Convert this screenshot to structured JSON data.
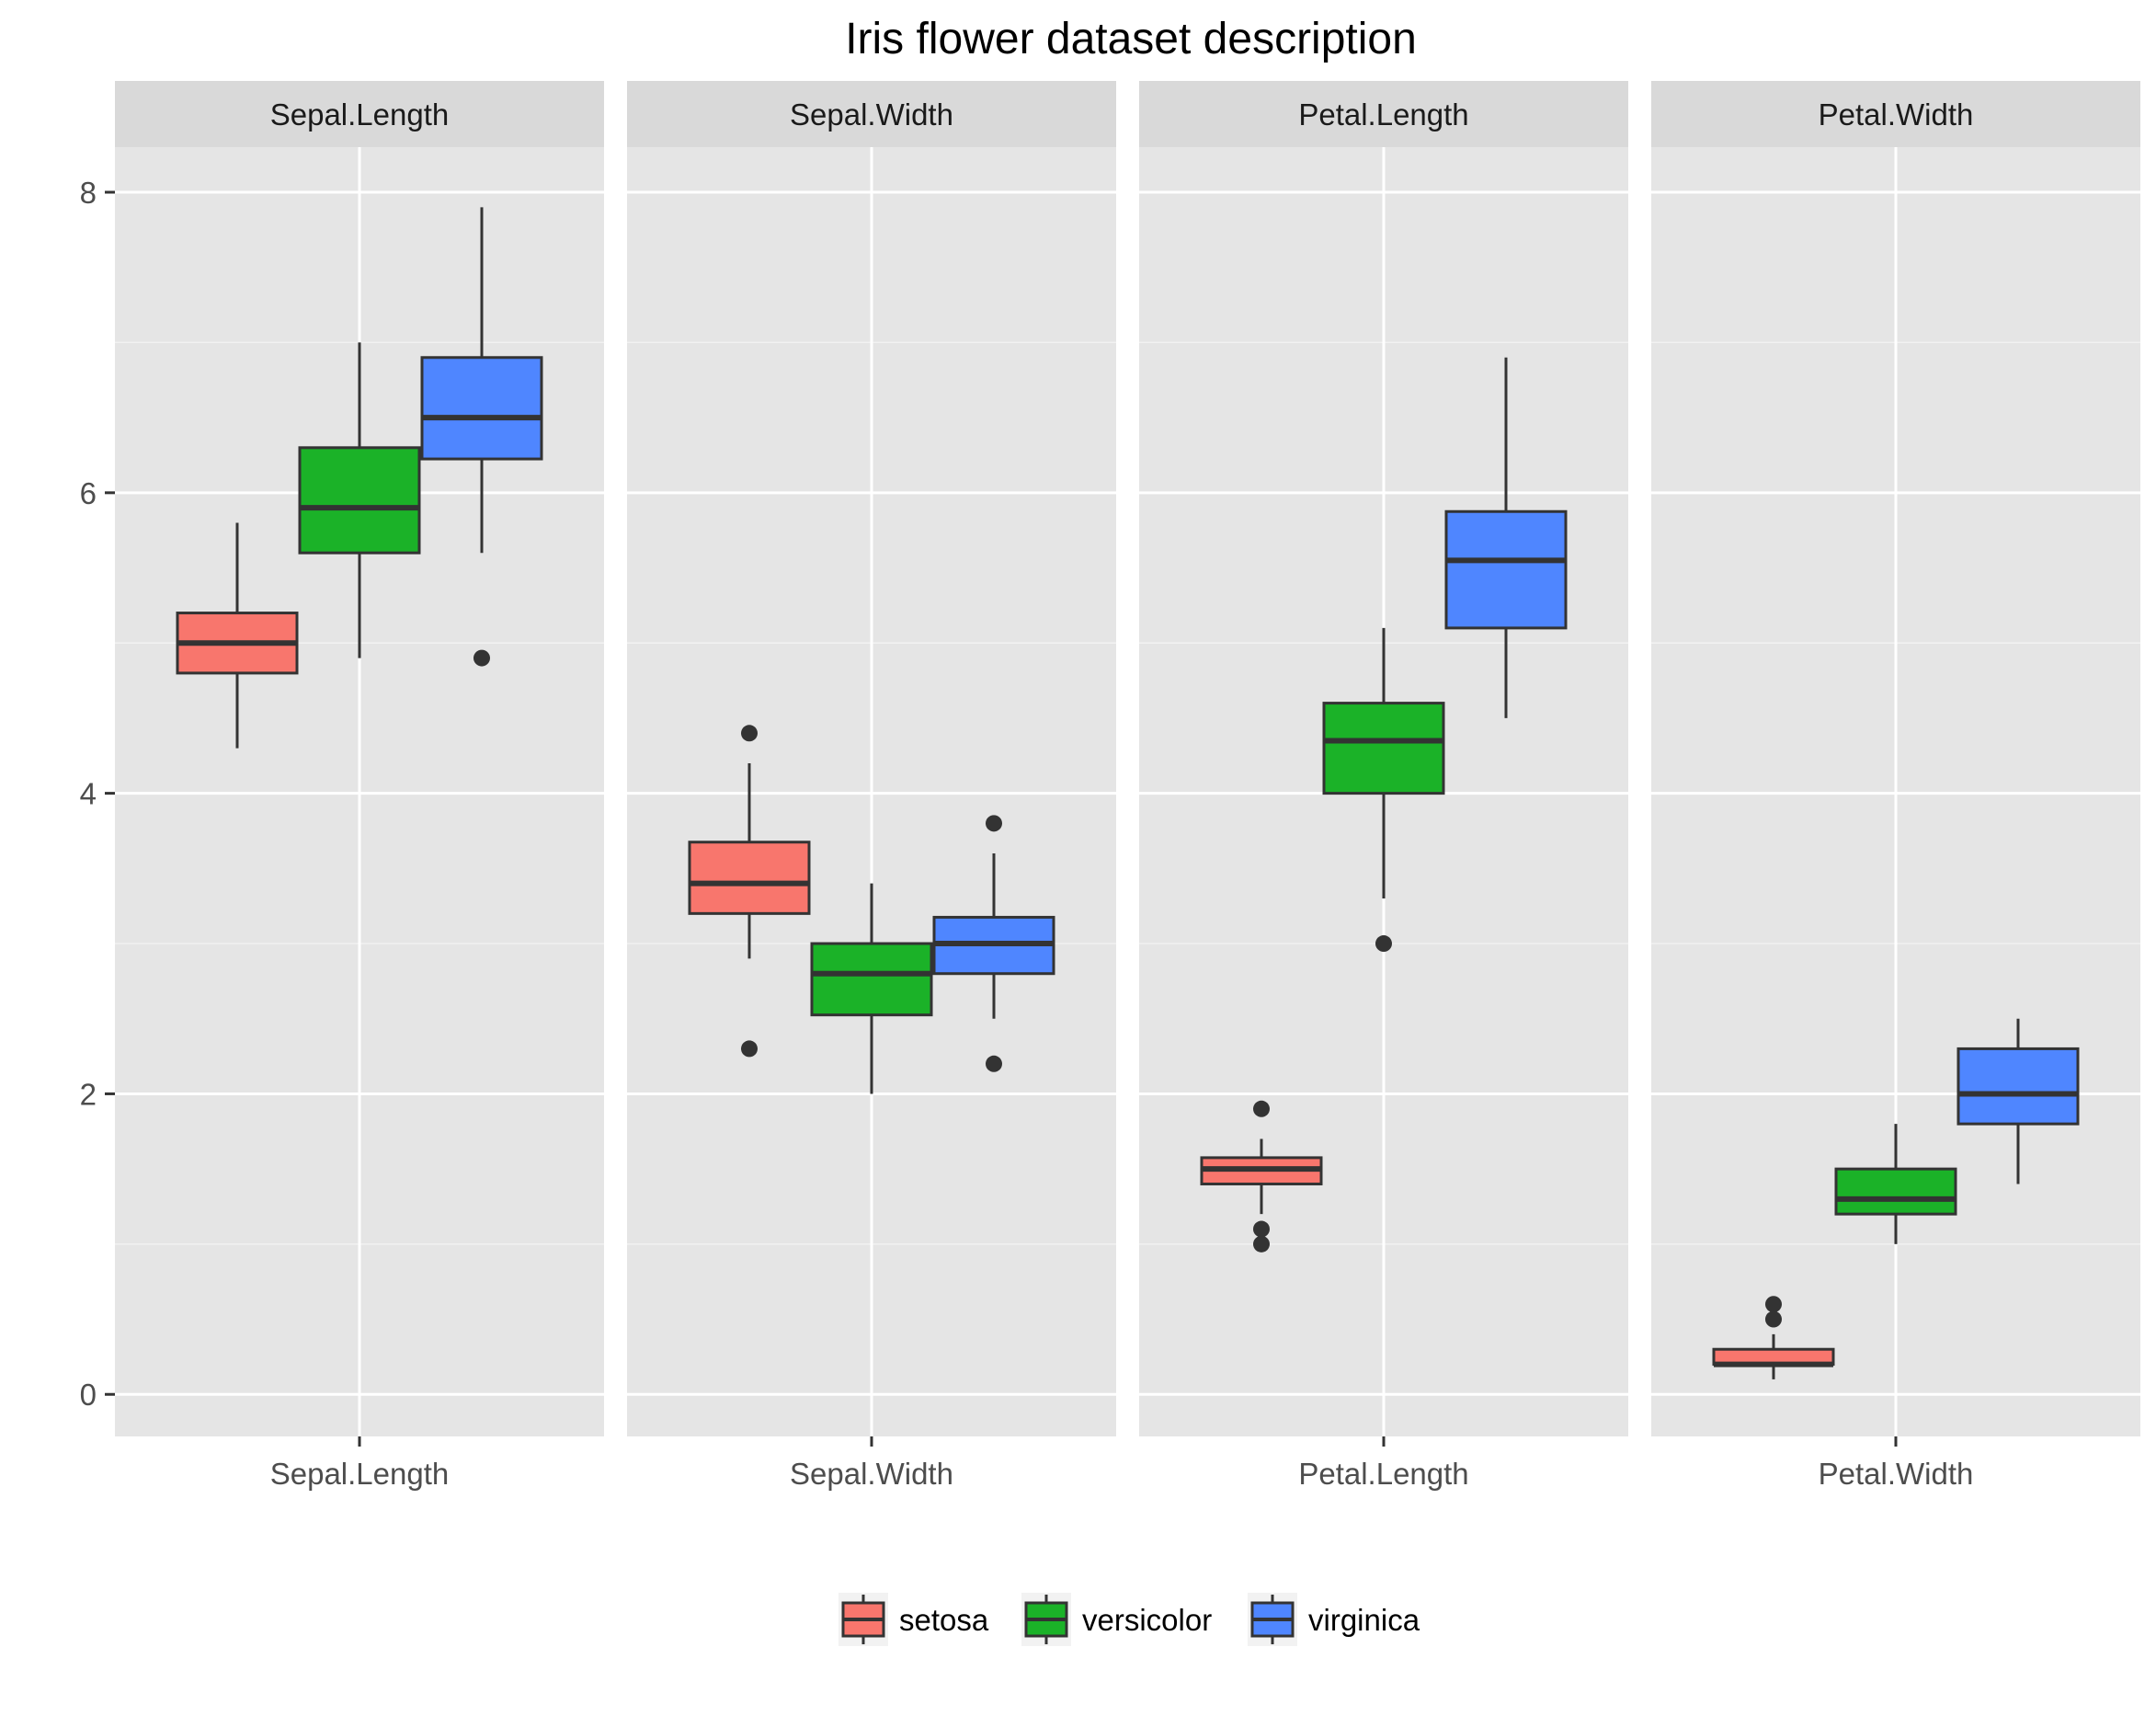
{
  "chart_data": {
    "type": "boxplot",
    "title": "Iris flower dataset description",
    "xlabel": "",
    "ylabel": "",
    "ylim": [
      -0.28,
      8.3
    ],
    "yticks": [
      0,
      2,
      4,
      6,
      8
    ],
    "grid": true,
    "legend_position": "bottom",
    "facets": [
      "Sepal.Length",
      "Sepal.Width",
      "Petal.Length",
      "Petal.Width"
    ],
    "series": [
      {
        "name": "setosa",
        "color": "#F8766D",
        "boxes": [
          {
            "facet": "Sepal.Length",
            "whisker_low": 4.3,
            "q1": 4.8,
            "median": 5.0,
            "q3": 5.2,
            "whisker_high": 5.8,
            "outliers": []
          },
          {
            "facet": "Sepal.Width",
            "whisker_low": 2.9,
            "q1": 3.2,
            "median": 3.4,
            "q3": 3.675,
            "whisker_high": 4.2,
            "outliers": [
              4.4,
              2.3
            ]
          },
          {
            "facet": "Petal.Length",
            "whisker_low": 1.2,
            "q1": 1.4,
            "median": 1.5,
            "q3": 1.575,
            "whisker_high": 1.7,
            "outliers": [
              1.9,
              1.1,
              1.0
            ]
          },
          {
            "facet": "Petal.Width",
            "whisker_low": 0.1,
            "q1": 0.2,
            "median": 0.2,
            "q3": 0.3,
            "whisker_high": 0.4,
            "outliers": [
              0.6,
              0.5
            ]
          }
        ]
      },
      {
        "name": "versicolor",
        "color": "#1BB228",
        "boxes": [
          {
            "facet": "Sepal.Length",
            "whisker_low": 4.9,
            "q1": 5.6,
            "median": 5.9,
            "q3": 6.3,
            "whisker_high": 7.0,
            "outliers": []
          },
          {
            "facet": "Sepal.Width",
            "whisker_low": 2.0,
            "q1": 2.525,
            "median": 2.8,
            "q3": 3.0,
            "whisker_high": 3.4,
            "outliers": []
          },
          {
            "facet": "Petal.Length",
            "whisker_low": 3.3,
            "q1": 4.0,
            "median": 4.35,
            "q3": 4.6,
            "whisker_high": 5.1,
            "outliers": [
              3.0
            ]
          },
          {
            "facet": "Petal.Width",
            "whisker_low": 1.0,
            "q1": 1.2,
            "median": 1.3,
            "q3": 1.5,
            "whisker_high": 1.8,
            "outliers": []
          }
        ]
      },
      {
        "name": "virginica",
        "color": "#4F86FF",
        "boxes": [
          {
            "facet": "Sepal.Length",
            "whisker_low": 5.6,
            "q1": 6.225,
            "median": 6.5,
            "q3": 6.9,
            "whisker_high": 7.9,
            "outliers": [
              4.9
            ]
          },
          {
            "facet": "Sepal.Width",
            "whisker_low": 2.5,
            "q1": 2.8,
            "median": 3.0,
            "q3": 3.175,
            "whisker_high": 3.6,
            "outliers": [
              3.8,
              2.2
            ]
          },
          {
            "facet": "Petal.Length",
            "whisker_low": 4.5,
            "q1": 5.1,
            "median": 5.55,
            "q3": 5.875,
            "whisker_high": 6.9,
            "outliers": []
          },
          {
            "facet": "Petal.Width",
            "whisker_low": 1.4,
            "q1": 1.8,
            "median": 2.0,
            "q3": 2.3,
            "whisker_high": 2.5,
            "outliers": []
          }
        ]
      }
    ]
  }
}
